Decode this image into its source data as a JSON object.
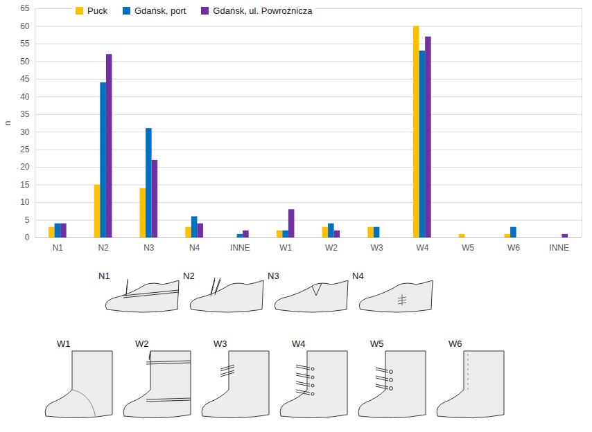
{
  "chart_data": {
    "type": "bar",
    "y_label": "n",
    "categories": [
      "N1",
      "N2",
      "N3",
      "N4",
      "INNE",
      "W1",
      "W2",
      "W3",
      "W4",
      "W5",
      "W6",
      "INNE"
    ],
    "series": [
      {
        "name": "Puck",
        "color": "#ffc000",
        "values": [
          3,
          15,
          14,
          3,
          0,
          2,
          3,
          3,
          60,
          1,
          1,
          0
        ]
      },
      {
        "name": "Gdańsk, port",
        "color": "#0070c0",
        "values": [
          4,
          44,
          31,
          6,
          1,
          2,
          4,
          3,
          53,
          0,
          3,
          0
        ]
      },
      {
        "name": "Gdańsk, ul. Powroźnicza",
        "color": "#7030a0",
        "values": [
          4,
          52,
          22,
          4,
          2,
          8,
          2,
          0,
          57,
          0,
          0,
          1
        ]
      }
    ],
    "ylim": [
      0,
      65
    ],
    "yticks": [
      0,
      5,
      10,
      15,
      20,
      25,
      30,
      35,
      40,
      45,
      50,
      55,
      60,
      65
    ],
    "grid": true,
    "legend": "upper left"
  },
  "illustrations": {
    "low_shoes": [
      "N1",
      "N2",
      "N3",
      "N4"
    ],
    "boots": [
      "W1",
      "W2",
      "W3",
      "W4",
      "W5",
      "W6"
    ]
  }
}
